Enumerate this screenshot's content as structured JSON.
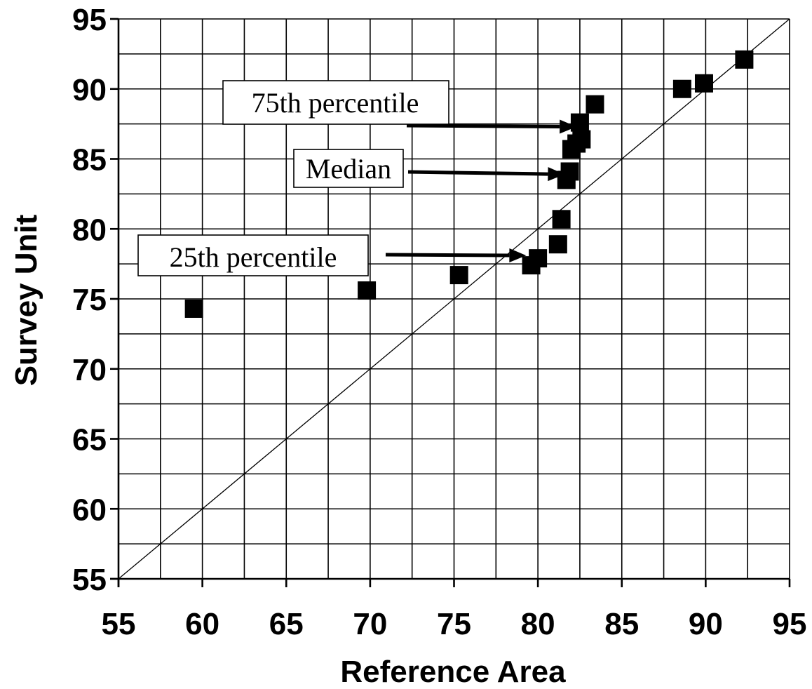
{
  "chart_data": {
    "type": "scatter",
    "xlabel": "Reference Area",
    "ylabel": "Survey Unit",
    "xlim": [
      55,
      95
    ],
    "ylim": [
      55,
      95
    ],
    "x_ticks": [
      "55",
      "60",
      "65",
      "70",
      "75",
      "80",
      "85",
      "90",
      "95"
    ],
    "y_ticks": [
      "55",
      "60",
      "65",
      "70",
      "75",
      "80",
      "85",
      "90",
      "95"
    ],
    "grid": true,
    "grid_minor_step": 2.5,
    "reference_line": {
      "type": "y=x",
      "from": [
        55,
        55
      ],
      "to": [
        95,
        95
      ]
    },
    "marker": "square",
    "marker_color": "#000000",
    "points": [
      {
        "x": 59.5,
        "y": 74.3
      },
      {
        "x": 69.8,
        "y": 75.6
      },
      {
        "x": 75.3,
        "y": 76.7
      },
      {
        "x": 79.6,
        "y": 77.4
      },
      {
        "x": 80.0,
        "y": 77.9
      },
      {
        "x": 81.2,
        "y": 78.9
      },
      {
        "x": 81.4,
        "y": 80.7
      },
      {
        "x": 81.7,
        "y": 83.5
      },
      {
        "x": 81.9,
        "y": 84.1
      },
      {
        "x": 82.0,
        "y": 85.7
      },
      {
        "x": 82.3,
        "y": 86.1
      },
      {
        "x": 82.6,
        "y": 86.4
      },
      {
        "x": 82.5,
        "y": 87.6
      },
      {
        "x": 83.4,
        "y": 88.9
      },
      {
        "x": 88.6,
        "y": 90.0
      },
      {
        "x": 89.9,
        "y": 90.4
      },
      {
        "x": 92.3,
        "y": 92.1
      }
    ],
    "annotations": [
      {
        "label": "75th percentile",
        "target": {
          "x": 82.3,
          "y": 87.3
        }
      },
      {
        "label": "Median",
        "target": {
          "x": 81.6,
          "y": 83.9
        }
      },
      {
        "label": "25th percentile",
        "target": {
          "x": 79.3,
          "y": 78.1
        }
      }
    ]
  }
}
